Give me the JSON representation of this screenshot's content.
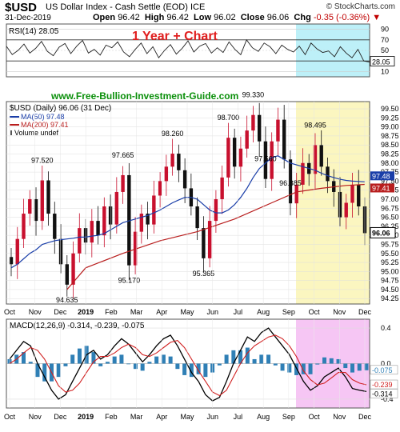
{
  "header": {
    "symbol": "$USD",
    "name": "US Dollar Index - Cash Settle (EOD) ICE",
    "credit": "© StockCharts.com",
    "date": "31-Dec-2019",
    "open_label": "Open",
    "open": "96.42",
    "high_label": "High",
    "high": "96.42",
    "low_label": "Low",
    "low": "96.02",
    "close_label": "Close",
    "close": "96.06",
    "chg_label": "Chg",
    "chg": "-0.35 (-0.36%)"
  },
  "annotations": {
    "title": "1 Year + Chart",
    "website": "www.Free-Bullion-Investment-Guide.com"
  },
  "colors": {
    "price_up": "#c8102e",
    "price_down": "#111111",
    "ma50": "#1a3ea8",
    "ma200": "#b81d1d",
    "rsi_highlight": "#bdf0f8",
    "price_highlight": "#fbf6c0",
    "macd_highlight": "#f6c6f4",
    "macd_hist": "#2f7fb5"
  },
  "chart_data": [
    {
      "type": "line",
      "name": "rsi",
      "legend": "RSI(14) 28.05",
      "y_ticks": [
        90,
        70,
        50,
        30,
        10
      ],
      "ylim": [
        0,
        100
      ],
      "last_value_label": "28.05",
      "values": [
        58,
        42,
        50,
        62,
        45,
        54,
        67,
        48,
        40,
        56,
        63,
        44,
        58,
        69,
        45,
        52,
        41,
        60,
        55,
        66,
        47,
        38,
        52,
        64,
        44,
        57,
        36,
        50,
        61,
        43,
        54,
        68,
        47,
        58,
        63,
        45,
        55,
        46,
        66,
        52,
        42,
        70,
        55,
        48,
        64,
        57,
        44,
        60,
        52,
        47,
        58,
        42,
        64,
        53,
        46,
        49,
        38,
        57,
        45,
        36,
        52,
        30,
        28
      ]
    },
    {
      "type": "line",
      "name": "price",
      "legend_title": "$USD (Daily) 96.06 (31 Dec)",
      "legend_ma50": "MA(50) 97.48",
      "legend_ma200": "MA(200) 97.41",
      "legend_volume": "Volume undef",
      "ylim": [
        94.1,
        99.7
      ],
      "y_ticks": [
        "99.50",
        "99.25",
        "99.00",
        "98.75",
        "98.50",
        "98.25",
        "98.00",
        "97.75",
        "97.50",
        "97.25",
        "97.00",
        "96.75",
        "96.50",
        "96.25",
        "96.00",
        "95.75",
        "95.50",
        "95.25",
        "95.00",
        "94.75",
        "94.50",
        "94.25"
      ],
      "x_labels": [
        "Oct",
        "Nov",
        "Dec",
        "2019",
        "Feb",
        "Mar",
        "Apr",
        "May",
        "Jun",
        "Jul",
        "Aug",
        "Sep",
        "Oct",
        "Nov",
        "Dec"
      ],
      "point_labels": [
        {
          "text": "97.520",
          "i": 5
        },
        {
          "text": "94.635",
          "i": 9
        },
        {
          "text": "97.665",
          "i": 18
        },
        {
          "text": "95.170",
          "i": 19
        },
        {
          "text": "98.260",
          "i": 26
        },
        {
          "text": "95.365",
          "i": 31
        },
        {
          "text": "98.700",
          "i": 35
        },
        {
          "text": "99.330",
          "i": 39
        },
        {
          "text": "97.560",
          "i": 41
        },
        {
          "text": "96.885",
          "i": 45
        },
        {
          "text": "98.495",
          "i": 49
        }
      ],
      "ma_labels": {
        "ma50": "97.48",
        "ma200": "97.41"
      },
      "last_price_label": "96.06",
      "close": [
        95.2,
        95.9,
        96.6,
        97.0,
        96.4,
        97.52,
        96.6,
        95.9,
        95.2,
        94.635,
        95.5,
        96.2,
        95.8,
        96.4,
        96.0,
        96.8,
        96.3,
        97.2,
        97.665,
        95.17,
        96.1,
        96.6,
        96.3,
        97.1,
        97.5,
        97.9,
        98.26,
        97.8,
        97.3,
        96.8,
        96.2,
        95.365,
        96.4,
        97.0,
        97.6,
        98.7,
        97.9,
        98.4,
        98.9,
        99.33,
        98.6,
        97.56,
        98.6,
        99.2,
        98.1,
        96.885,
        97.4,
        98.0,
        97.7,
        98.495,
        97.9,
        97.5,
        97.2,
        96.5,
        96.9,
        97.4,
        96.8,
        96.06
      ],
      "ma50": [
        95.1,
        95.2,
        95.35,
        95.5,
        95.6,
        95.75,
        95.8,
        95.85,
        95.88,
        95.9,
        95.92,
        95.95,
        95.95,
        95.98,
        96.0,
        96.05,
        96.15,
        96.25,
        96.35,
        96.4,
        96.45,
        96.5,
        96.55,
        96.62,
        96.7,
        96.8,
        96.9,
        96.98,
        97.05,
        97.05,
        97.0,
        96.85,
        96.7,
        96.62,
        96.62,
        96.7,
        96.85,
        97.05,
        97.3,
        97.6,
        97.85,
        98.0,
        98.15,
        98.2,
        98.1,
        98.0,
        97.95,
        97.9,
        97.85,
        97.8,
        97.72,
        97.65,
        97.6,
        97.55,
        97.52,
        97.5,
        97.49,
        97.48
      ],
      "ma200_points": [
        [
          9,
          94.5
        ],
        [
          12,
          95.1
        ],
        [
          18,
          95.5
        ],
        [
          24,
          95.85
        ],
        [
          30,
          96.1
        ],
        [
          36,
          96.45
        ],
        [
          42,
          96.9
        ],
        [
          46,
          97.2
        ],
        [
          50,
          97.3
        ],
        [
          54,
          97.38
        ],
        [
          57,
          97.41
        ]
      ]
    },
    {
      "type": "line",
      "name": "macd",
      "legend": "MACD(12,26,9) -0.314, -0.239, -0.075",
      "y_ticks": [
        "0.4",
        "0.0",
        "-0.4"
      ],
      "ylim": [
        -0.5,
        0.5
      ],
      "x_labels": [
        "Oct",
        "Nov",
        "Dec",
        "2019",
        "Feb",
        "Mar",
        "Apr",
        "May",
        "Jun",
        "Jul",
        "Aug",
        "Sep",
        "Oct",
        "Nov",
        "Dec"
      ],
      "right_labels": [
        "-0.075",
        "-0.239",
        "-0.314"
      ],
      "macd": [
        0.05,
        0.15,
        0.25,
        0.2,
        0.0,
        -0.15,
        -0.3,
        -0.4,
        -0.35,
        -0.2,
        -0.05,
        0.1,
        0.15,
        0.05,
        0.1,
        0.2,
        0.28,
        0.22,
        0.12,
        0.02,
        0.1,
        0.2,
        0.28,
        0.32,
        0.2,
        0.05,
        -0.1,
        -0.2,
        -0.35,
        -0.42,
        -0.38,
        -0.2,
        0.0,
        0.15,
        0.3,
        0.25,
        0.35,
        0.4,
        0.3,
        0.2,
        0.1,
        -0.05,
        -0.2,
        -0.3,
        -0.25,
        -0.15,
        -0.1,
        -0.05,
        -0.15,
        -0.28,
        -0.3,
        -0.314
      ],
      "signal": [
        0.0,
        0.05,
        0.12,
        0.18,
        0.15,
        0.05,
        -0.1,
        -0.25,
        -0.32,
        -0.3,
        -0.22,
        -0.1,
        0.02,
        0.08,
        0.08,
        0.12,
        0.18,
        0.22,
        0.18,
        0.1,
        0.08,
        0.12,
        0.18,
        0.24,
        0.26,
        0.18,
        0.05,
        -0.08,
        -0.2,
        -0.32,
        -0.36,
        -0.3,
        -0.15,
        0.0,
        0.12,
        0.2,
        0.25,
        0.3,
        0.32,
        0.28,
        0.2,
        0.08,
        -0.08,
        -0.18,
        -0.24,
        -0.22,
        -0.16,
        -0.1,
        -0.1,
        -0.18,
        -0.22,
        -0.239
      ]
    }
  ]
}
